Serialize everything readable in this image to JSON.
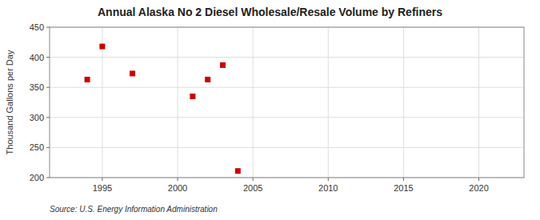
{
  "chart_data": {
    "type": "scatter",
    "title": "Annual Alaska No 2 Diesel Wholesale/Resale Volume by Refiners",
    "ylabel": "Thousand Gallons per Day",
    "source": "Source: U.S. Energy Information Administration",
    "x": [
      1994,
      1995,
      1997,
      2001,
      2002,
      2003,
      2004
    ],
    "values": [
      363,
      418,
      373,
      335,
      363,
      387,
      211
    ],
    "color": "#cc0000",
    "marker": "square",
    "xlim": [
      1991.5,
      2023
    ],
    "ylim": [
      200,
      450
    ],
    "xticks": [
      1995,
      2000,
      2005,
      2010,
      2015,
      2020
    ],
    "yticks": [
      200,
      250,
      300,
      350,
      400,
      450
    ],
    "grid": true
  }
}
